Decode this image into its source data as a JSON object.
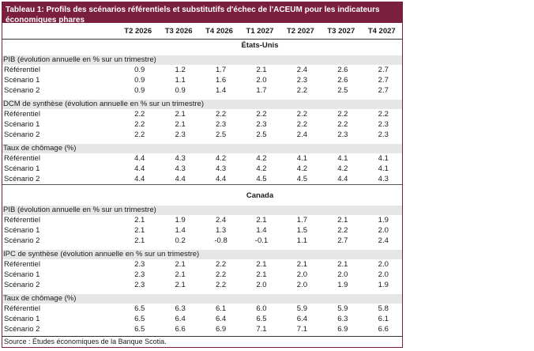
{
  "title": "Tableau 1: Profils des scénarios référentiels et substitutifs d'échec de l'ACEUM pour les indicateurs économiques phares",
  "quarters": [
    "T2 2026",
    "T3 2026",
    "T4 2026",
    "T1 2027",
    "T2 2027",
    "T3 2027",
    "T4 2027"
  ],
  "regions": [
    {
      "name": "États-Unis",
      "groups": [
        {
          "label": "PIB (évolution annuelle en % sur un trimestre)",
          "rows": [
            {
              "name": "Référentiel",
              "values": [
                "0.9",
                "1.2",
                "1.7",
                "2.1",
                "2.4",
                "2.6",
                "2.7"
              ]
            },
            {
              "name": "Scénario 1",
              "values": [
                "0.9",
                "1.1",
                "1.6",
                "2.0",
                "2.3",
                "2.6",
                "2.7"
              ]
            },
            {
              "name": "Scénario 2",
              "values": [
                "0.9",
                "0.9",
                "1.4",
                "1.7",
                "2.2",
                "2.5",
                "2.7"
              ]
            }
          ]
        },
        {
          "label": "DCM de synthèse (évolution annuelle en % sur un trimestre)",
          "rows": [
            {
              "name": "Référentiel",
              "values": [
                "2.2",
                "2.1",
                "2.2",
                "2.2",
                "2.2",
                "2.2",
                "2.2"
              ]
            },
            {
              "name": "Scénario 1",
              "values": [
                "2.2",
                "2.1",
                "2.3",
                "2.3",
                "2.2",
                "2.2",
                "2.3"
              ]
            },
            {
              "name": "Scénario 2",
              "values": [
                "2.2",
                "2.3",
                "2.5",
                "2.5",
                "2.4",
                "2.3",
                "2.3"
              ]
            }
          ]
        },
        {
          "label": "Taux de chômage (%)",
          "rows": [
            {
              "name": "Référentiel",
              "values": [
                "4.4",
                "4.3",
                "4.2",
                "4.2",
                "4.1",
                "4.1",
                "4.1"
              ]
            },
            {
              "name": "Scénario 1",
              "values": [
                "4.4",
                "4.3",
                "4.3",
                "4.2",
                "4.2",
                "4.2",
                "4.1"
              ]
            },
            {
              "name": "Scénario 2",
              "values": [
                "4.4",
                "4.4",
                "4.4",
                "4.5",
                "4.5",
                "4.4",
                "4.3"
              ]
            }
          ]
        }
      ]
    },
    {
      "name": "Canada",
      "groups": [
        {
          "label": "PIB (évolution annuelle en % sur un trimestre)",
          "rows": [
            {
              "name": "Référentiel",
              "values": [
                "2.1",
                "1.9",
                "2.4",
                "2.1",
                "1.7",
                "2.1",
                "1.9"
              ]
            },
            {
              "name": "Scénario 1",
              "values": [
                "2.1",
                "1.4",
                "1.3",
                "1.4",
                "1.5",
                "2.2",
                "2.0"
              ]
            },
            {
              "name": "Scénario 2",
              "values": [
                "2.1",
                "0.2",
                "-0.8",
                "-0.1",
                "1.1",
                "2.7",
                "2.4"
              ]
            }
          ]
        },
        {
          "label": "IPC de synthèse (évolution annuelle en % sur un trimestre)",
          "rows": [
            {
              "name": "Référentiel",
              "values": [
                "2.3",
                "2.1",
                "2.2",
                "2.1",
                "2.1",
                "2.1",
                "2.0"
              ]
            },
            {
              "name": "Scénario 1",
              "values": [
                "2.3",
                "2.1",
                "2.2",
                "2.1",
                "2.0",
                "2.0",
                "2.0"
              ]
            },
            {
              "name": "Scénario 2",
              "values": [
                "2.3",
                "2.1",
                "2.2",
                "2.0",
                "2.0",
                "1.9",
                "1.9"
              ]
            }
          ]
        },
        {
          "label": "Taux de chômage (%)",
          "rows": [
            {
              "name": "Référentiel",
              "values": [
                "6.5",
                "6.3",
                "6.1",
                "6.0",
                "5.9",
                "5.9",
                "5.8"
              ]
            },
            {
              "name": "Scénario 1",
              "values": [
                "6.5",
                "6.4",
                "6.4",
                "6.5",
                "6.4",
                "6.3",
                "6.1"
              ]
            },
            {
              "name": "Scénario 2",
              "values": [
                "6.5",
                "6.6",
                "6.9",
                "7.1",
                "7.1",
                "6.9",
                "6.6"
              ]
            }
          ]
        }
      ]
    }
  ],
  "source": "Source : Études économiques de la Banque Scotia.",
  "colors": {
    "title_bg": "#7a1f3d",
    "subheader_bg": "#e6e6e6"
  }
}
